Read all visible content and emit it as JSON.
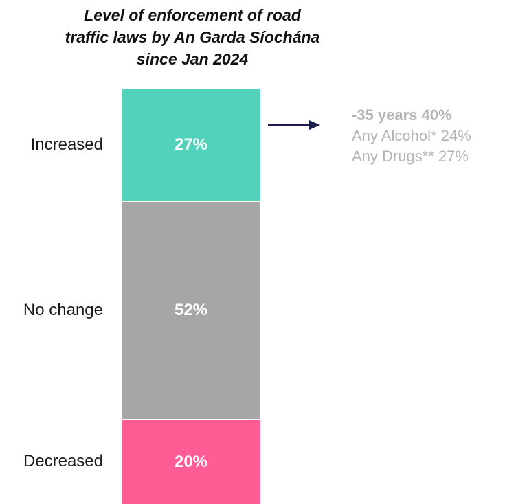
{
  "chart_data": {
    "type": "bar",
    "stacked": true,
    "orientation": "vertical",
    "title_lines": [
      "Level of enforcement of road",
      "traffic laws by An Garda Síochána",
      "since Jan 2024"
    ],
    "categories": [
      "Increased",
      "No change",
      "Decreased"
    ],
    "values": [
      27,
      52,
      20
    ],
    "value_labels": [
      "27%",
      "52%",
      "20%"
    ],
    "colors": [
      "#52d1bb",
      "#a6a6a6",
      "#ff5c96"
    ],
    "legend": "none",
    "grid": false
  },
  "annotation": {
    "lines": [
      {
        "text": "-35 years 40%",
        "bold": true
      },
      {
        "text": "Any Alcohol* 24%",
        "bold": false
      },
      {
        "text": "Any Drugs** 27%",
        "bold": false
      }
    ],
    "arrow_color": "#1b1f4f",
    "text_color": "#b4b4b4"
  }
}
